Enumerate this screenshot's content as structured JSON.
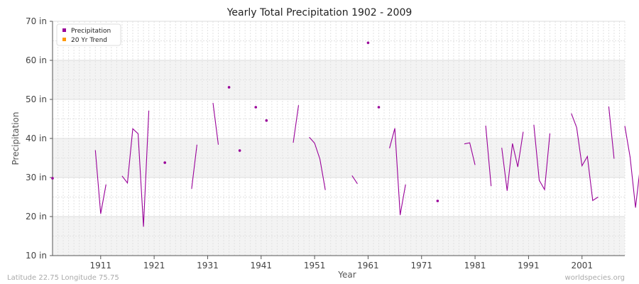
{
  "chart_data": {
    "type": "line",
    "title": "Yearly Total Precipitation 1902 - 2009",
    "xlabel": "Year",
    "ylabel": "Precipitation",
    "xlim": [
      1902,
      2009
    ],
    "ylim": [
      10,
      70
    ],
    "x_ticks": [
      1911,
      1921,
      1931,
      1941,
      1951,
      1961,
      1971,
      1981,
      1991,
      2001
    ],
    "y_ticks": [
      10,
      20,
      30,
      40,
      50,
      60,
      70
    ],
    "y_tick_labels": [
      "10 in",
      "20 in",
      "30 in",
      "40 in",
      "50 in",
      "60 in",
      "70 in"
    ],
    "grid": true,
    "legend_position": "top-left",
    "series": [
      {
        "name": "Precipitation",
        "color": "#990099",
        "points": [
          [
            1902,
            29.8
          ],
          [
            1910,
            37
          ],
          [
            1911,
            20.7
          ],
          [
            1912,
            28.2
          ],
          [
            1915,
            30.4
          ],
          [
            1916,
            28.6
          ],
          [
            1917,
            42.5
          ],
          [
            1918,
            41.2
          ],
          [
            1919,
            17.4
          ],
          [
            1920,
            47.1
          ],
          [
            1923,
            33.8
          ],
          [
            1928,
            27.1
          ],
          [
            1929,
            38.4
          ],
          [
            1932,
            49.1
          ],
          [
            1933,
            38.4
          ],
          [
            1935,
            53.1
          ],
          [
            1937,
            36.9
          ],
          [
            1940,
            48.0
          ],
          [
            1942,
            44.6
          ],
          [
            1947,
            38.9
          ],
          [
            1948,
            48.5
          ],
          [
            1950,
            40.3
          ],
          [
            1951,
            38.8
          ],
          [
            1952,
            34.7
          ],
          [
            1953,
            26.8
          ],
          [
            1958,
            30.5
          ],
          [
            1959,
            28.4
          ],
          [
            1961,
            64.5
          ],
          [
            1963,
            48.0
          ],
          [
            1965,
            37.5
          ],
          [
            1966,
            42.6
          ],
          [
            1967,
            20.4
          ],
          [
            1968,
            28.2
          ],
          [
            1974,
            24.0
          ],
          [
            1979,
            38.6
          ],
          [
            1980,
            38.9
          ],
          [
            1981,
            33.2
          ],
          [
            1983,
            43.3
          ],
          [
            1984,
            27.8
          ],
          [
            1986,
            37.6
          ],
          [
            1987,
            26.6
          ],
          [
            1988,
            38.7
          ],
          [
            1989,
            32.7
          ],
          [
            1990,
            41.7
          ],
          [
            1992,
            43.5
          ],
          [
            1993,
            29.3
          ],
          [
            1994,
            26.9
          ],
          [
            1995,
            41.3
          ],
          [
            1999,
            46.4
          ],
          [
            2000,
            42.8
          ],
          [
            2001,
            33.0
          ],
          [
            2002,
            35.4
          ],
          [
            2003,
            24.1
          ],
          [
            2004,
            25.0
          ],
          [
            2006,
            48.2
          ],
          [
            2007,
            34.8
          ],
          [
            2009,
            43.2
          ],
          [
            2010,
            35.2
          ],
          [
            2011,
            22.3
          ],
          [
            2012,
            34.1
          ]
        ]
      },
      {
        "name": "20 Yr Trend",
        "color": "#ff9900",
        "points": []
      }
    ]
  },
  "footer": {
    "left": "Latitude 22.75 Longitude 75.75",
    "right": "worldspecies.org"
  }
}
